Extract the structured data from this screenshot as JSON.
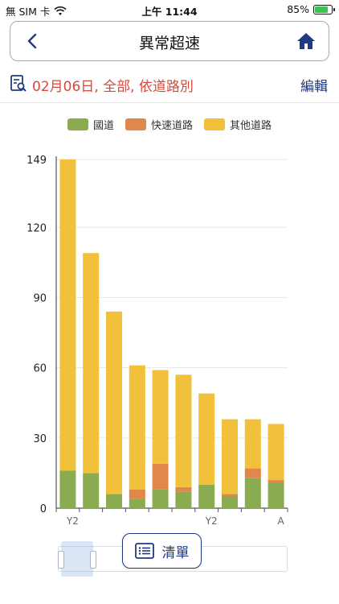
{
  "status": {
    "carrier": "無 SIM 卡",
    "time": "上午 11:44",
    "battery_percent": "85%",
    "battery_level": 0.85
  },
  "nav": {
    "title": "異常超速",
    "back_icon": "chevron-left-icon",
    "home_icon": "home-icon"
  },
  "filter": {
    "summary": "02月06日, 全部, 依道路別",
    "edit_label": "編輯"
  },
  "colors": {
    "national": "#8aab4f",
    "expressway": "#e0874a",
    "other": "#f2c13c",
    "accent": "#1f3a82",
    "filter_red": "#d9483b"
  },
  "chart_data": {
    "type": "bar",
    "stacked": true,
    "categories": [
      "",
      "",
      "",
      "",
      "",
      "",
      "",
      "",
      "",
      ""
    ],
    "x_tick_labels_visible": [
      "Y2",
      "",
      "",
      "",
      "",
      "",
      "Y2",
      "",
      "",
      "A"
    ],
    "series": [
      {
        "name": "國道",
        "color": "#8aab4f",
        "values": [
          16,
          15,
          6,
          4,
          8,
          7,
          10,
          5,
          13,
          11
        ]
      },
      {
        "name": "快速道路",
        "color": "#e0874a",
        "values": [
          0,
          0,
          0,
          4,
          11,
          2,
          0,
          1,
          4,
          1
        ]
      },
      {
        "name": "其他道路",
        "color": "#f2c13c",
        "values": [
          133,
          94,
          78,
          53,
          40,
          48,
          39,
          32,
          21,
          24
        ]
      }
    ],
    "y_ticks": [
      0,
      30,
      60,
      90,
      120,
      149
    ],
    "ylim": [
      0,
      149
    ],
    "grid": true,
    "legend": "top-center"
  },
  "list_button": {
    "label": "清單",
    "icon": "list-icon"
  }
}
